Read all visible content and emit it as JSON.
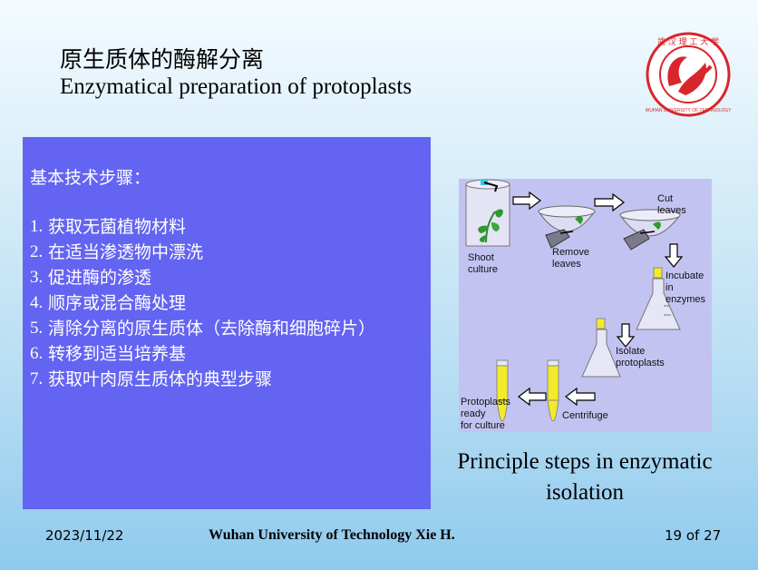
{
  "slide": {
    "title_cn": "原生质体的酶解分离",
    "title_en": "Enzymatical preparation of protoplasts",
    "logo_text": "武汉理工大学 WUHAN UNIVERSITY OF TECHNOLOGY"
  },
  "steps": {
    "heading": "基本技术步骤：",
    "items": [
      {
        "num": "1.",
        "text": "获取无菌植物材料"
      },
      {
        "num": "2.",
        "text": "在适当渗透物中漂洗"
      },
      {
        "num": "3.",
        "text": "促进酶的渗透"
      },
      {
        "num": "4.",
        "text": "顺序或混合酶处理"
      },
      {
        "num": "5.",
        "text": "清除分离的原生质体（去除酶和细胞碎片）"
      },
      {
        "num": "6.",
        "text": "转移到适当培养基"
      },
      {
        "num": "7.",
        "text": "获取叶肉原生质体的典型步骤"
      }
    ]
  },
  "diagram": {
    "labels": {
      "shoot": "Shoot",
      "culture": "culture",
      "remove": "Remove",
      "leaves": "leaves",
      "cut": "Cut",
      "cut_leaves": "leaves",
      "incubate": "Incubate",
      "in": "in",
      "enzymes": "enzymes",
      "isolate": "Isolate",
      "protoplasts": "protoplasts",
      "centrifuge": "Centrifuge",
      "prot_ready1": "Protoplasts",
      "prot_ready2": "ready",
      "prot_ready3": "for culture"
    }
  },
  "caption": {
    "line1": "Principle steps in enzymatic",
    "line2": "isolation"
  },
  "footer": {
    "date": "2023/11/22",
    "center": "Wuhan University of Technology  Xie H.",
    "page": "19 of 27"
  },
  "colors": {
    "box": "#6464f2",
    "diagram_bg": "#c3c3f2",
    "logo_red": "#d8262b",
    "tube_yellow": "#f3ea2a"
  }
}
